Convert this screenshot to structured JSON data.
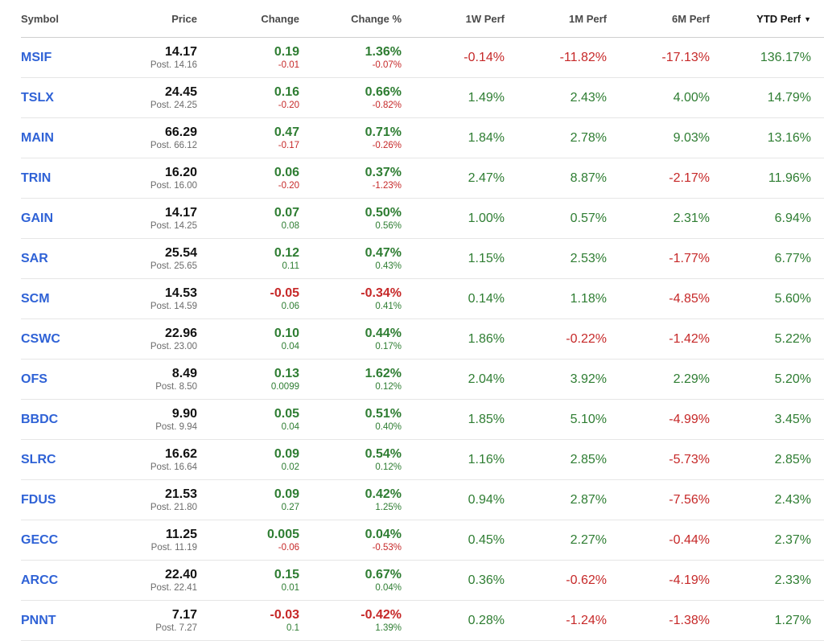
{
  "colors": {
    "positive": "#2e7d32",
    "negative": "#c62828",
    "symbol": "#2f62d6"
  },
  "headers": {
    "symbol": "Symbol",
    "price": "Price",
    "change": "Change",
    "change_pct": "Change %",
    "perf_1w": "1W Perf",
    "perf_1m": "1M Perf",
    "perf_6m": "6M Perf",
    "perf_ytd": "YTD Perf",
    "sort_icon": "caret-down-icon"
  },
  "rows": [
    {
      "symbol": "MSIF",
      "price": "14.17",
      "post": "Post. 14.16",
      "change": "0.19",
      "post_change": "-0.01",
      "change_pct": "1.36%",
      "post_change_pct": "-0.07%",
      "w1": "-0.14%",
      "m1": "-11.82%",
      "m6": "-17.13%",
      "ytd": "136.17%"
    },
    {
      "symbol": "TSLX",
      "price": "24.45",
      "post": "Post. 24.25",
      "change": "0.16",
      "post_change": "-0.20",
      "change_pct": "0.66%",
      "post_change_pct": "-0.82%",
      "w1": "1.49%",
      "m1": "2.43%",
      "m6": "4.00%",
      "ytd": "14.79%"
    },
    {
      "symbol": "MAIN",
      "price": "66.29",
      "post": "Post. 66.12",
      "change": "0.47",
      "post_change": "-0.17",
      "change_pct": "0.71%",
      "post_change_pct": "-0.26%",
      "w1": "1.84%",
      "m1": "2.78%",
      "m6": "9.03%",
      "ytd": "13.16%"
    },
    {
      "symbol": "TRIN",
      "price": "16.20",
      "post": "Post. 16.00",
      "change": "0.06",
      "post_change": "-0.20",
      "change_pct": "0.37%",
      "post_change_pct": "-1.23%",
      "w1": "2.47%",
      "m1": "8.87%",
      "m6": "-2.17%",
      "ytd": "11.96%"
    },
    {
      "symbol": "GAIN",
      "price": "14.17",
      "post": "Post. 14.25",
      "change": "0.07",
      "post_change": "0.08",
      "change_pct": "0.50%",
      "post_change_pct": "0.56%",
      "w1": "1.00%",
      "m1": "0.57%",
      "m6": "2.31%",
      "ytd": "6.94%"
    },
    {
      "symbol": "SAR",
      "price": "25.54",
      "post": "Post. 25.65",
      "change": "0.12",
      "post_change": "0.11",
      "change_pct": "0.47%",
      "post_change_pct": "0.43%",
      "w1": "1.15%",
      "m1": "2.53%",
      "m6": "-1.77%",
      "ytd": "6.77%"
    },
    {
      "symbol": "SCM",
      "price": "14.53",
      "post": "Post. 14.59",
      "change": "-0.05",
      "post_change": "0.06",
      "change_pct": "-0.34%",
      "post_change_pct": "0.41%",
      "w1": "0.14%",
      "m1": "1.18%",
      "m6": "-4.85%",
      "ytd": "5.60%"
    },
    {
      "symbol": "CSWC",
      "price": "22.96",
      "post": "Post. 23.00",
      "change": "0.10",
      "post_change": "0.04",
      "change_pct": "0.44%",
      "post_change_pct": "0.17%",
      "w1": "1.86%",
      "m1": "-0.22%",
      "m6": "-1.42%",
      "ytd": "5.22%"
    },
    {
      "symbol": "OFS",
      "price": "8.49",
      "post": "Post. 8.50",
      "change": "0.13",
      "post_change": "0.0099",
      "change_pct": "1.62%",
      "post_change_pct": "0.12%",
      "w1": "2.04%",
      "m1": "3.92%",
      "m6": "2.29%",
      "ytd": "5.20%"
    },
    {
      "symbol": "BBDC",
      "price": "9.90",
      "post": "Post. 9.94",
      "change": "0.05",
      "post_change": "0.04",
      "change_pct": "0.51%",
      "post_change_pct": "0.40%",
      "w1": "1.85%",
      "m1": "5.10%",
      "m6": "-4.99%",
      "ytd": "3.45%"
    },
    {
      "symbol": "SLRC",
      "price": "16.62",
      "post": "Post. 16.64",
      "change": "0.09",
      "post_change": "0.02",
      "change_pct": "0.54%",
      "post_change_pct": "0.12%",
      "w1": "1.16%",
      "m1": "2.85%",
      "m6": "-5.73%",
      "ytd": "2.85%"
    },
    {
      "symbol": "FDUS",
      "price": "21.53",
      "post": "Post. 21.80",
      "change": "0.09",
      "post_change": "0.27",
      "change_pct": "0.42%",
      "post_change_pct": "1.25%",
      "w1": "0.94%",
      "m1": "2.87%",
      "m6": "-7.56%",
      "ytd": "2.43%"
    },
    {
      "symbol": "GECC",
      "price": "11.25",
      "post": "Post. 11.19",
      "change": "0.005",
      "post_change": "-0.06",
      "change_pct": "0.04%",
      "post_change_pct": "-0.53%",
      "w1": "0.45%",
      "m1": "2.27%",
      "m6": "-0.44%",
      "ytd": "2.37%"
    },
    {
      "symbol": "ARCC",
      "price": "22.40",
      "post": "Post. 22.41",
      "change": "0.15",
      "post_change": "0.01",
      "change_pct": "0.67%",
      "post_change_pct": "0.04%",
      "w1": "0.36%",
      "m1": "-0.62%",
      "m6": "-4.19%",
      "ytd": "2.33%"
    },
    {
      "symbol": "PNNT",
      "price": "7.17",
      "post": "Post. 7.27",
      "change": "-0.03",
      "post_change": "0.1",
      "change_pct": "-0.42%",
      "post_change_pct": "1.39%",
      "w1": "0.28%",
      "m1": "-1.24%",
      "m6": "-1.38%",
      "ytd": "1.27%"
    }
  ]
}
